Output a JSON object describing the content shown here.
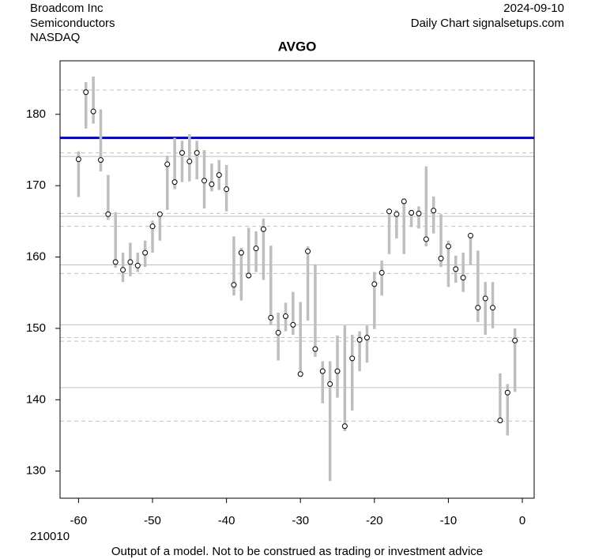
{
  "chart_data": {
    "type": "highlow",
    "title": "AVGO",
    "company": "Broadcom Inc",
    "sector": "Semiconductors",
    "exchange": "NASDAQ",
    "date": "2024-09-10",
    "source": "Daily Chart signalsetups.com",
    "code": "210010",
    "disclaimer": "Output of a model. Not to be construed as trading or investment advice",
    "xlim": [
      -62.5,
      1.6
    ],
    "ylim": [
      126.2,
      187.5
    ],
    "xticks": [
      -60,
      -50,
      -40,
      -30,
      -20,
      -10,
      0
    ],
    "yticks": [
      130,
      140,
      150,
      160,
      170,
      180
    ],
    "bar_color": "#bebebe",
    "level_main": 176.7,
    "level_main_color": "#0000cd",
    "levels_solid": [
      174.1,
      165.7,
      158.9,
      150.5,
      141.7
    ],
    "levels_dashed": [
      183.4,
      174.6,
      166.1,
      164.3,
      157.7,
      148.7,
      148.2,
      137.0
    ],
    "x": [
      -60,
      -59,
      -58,
      -57,
      -56,
      -55,
      -54,
      -53,
      -52,
      -51,
      -50,
      -49,
      -48,
      -47,
      -46,
      -45,
      -44,
      -43,
      -42,
      -41,
      -40,
      -39,
      -38,
      -37,
      -36,
      -35,
      -34,
      -33,
      -32,
      -31,
      -30,
      -29,
      -28,
      -27,
      -26,
      -25,
      -24,
      -23,
      -22,
      -21,
      -20,
      -19,
      -18,
      -17,
      -16,
      -15,
      -14,
      -13,
      -12,
      -11,
      -10,
      -9,
      -8,
      -7,
      -6,
      -5,
      -4,
      -3,
      -2,
      -1
    ],
    "high": [
      174.8,
      184.5,
      185.3,
      180.7,
      171.5,
      166.3,
      160.6,
      162.0,
      160.6,
      162.3,
      165.1,
      166.3,
      174.2,
      176.7,
      176.3,
      177.2,
      176.3,
      175.0,
      173.1,
      173.6,
      172.9,
      162.9,
      161.3,
      164.1,
      163.6,
      165.4,
      161.6,
      152.2,
      153.6,
      155.1,
      153.7,
      161.5,
      159.0,
      145.4,
      145.4,
      149.0,
      150.4,
      149.1,
      149.6,
      150.4,
      157.9,
      159.5,
      166.8,
      166.6,
      168.2,
      166.6,
      167.1,
      172.7,
      168.5,
      166.0,
      162.3,
      160.2,
      160.6,
      163.3,
      160.9,
      156.5,
      156.5,
      143.7,
      142.2,
      150.0
    ],
    "low": [
      168.4,
      178.0,
      178.7,
      172.0,
      165.2,
      158.5,
      156.5,
      157.3,
      157.9,
      158.6,
      160.6,
      162.3,
      166.6,
      169.5,
      170.5,
      170.6,
      170.9,
      166.8,
      169.2,
      169.4,
      166.4,
      154.6,
      153.9,
      157.0,
      157.9,
      156.8,
      150.5,
      145.5,
      149.6,
      149.1,
      143.8,
      151.1,
      146.0,
      139.5,
      128.6,
      140.3,
      135.6,
      138.5,
      144.0,
      145.2,
      149.9,
      154.6,
      160.4,
      162.6,
      160.4,
      164.2,
      164.0,
      161.5,
      163.3,
      158.6,
      155.8,
      156.4,
      155.1,
      158.9,
      150.9,
      149.1,
      150.0,
      136.7,
      135.0,
      141.1
    ],
    "close": [
      173.7,
      183.1,
      180.4,
      173.6,
      166.0,
      159.3,
      158.2,
      159.3,
      158.8,
      160.6,
      164.3,
      166.0,
      173.0,
      170.5,
      174.6,
      173.4,
      174.6,
      170.7,
      170.2,
      171.5,
      169.5,
      156.1,
      160.6,
      157.4,
      161.2,
      163.9,
      151.5,
      149.4,
      151.7,
      150.5,
      143.6,
      160.8,
      147.1,
      144.0,
      142.2,
      144.0,
      136.3,
      145.8,
      148.4,
      148.7,
      156.2,
      157.8,
      166.4,
      166.0,
      167.8,
      166.2,
      166.1,
      162.5,
      166.5,
      159.8,
      161.5,
      158.3,
      157.1,
      163.0,
      152.9,
      154.2,
      152.9,
      137.1,
      141.0,
      148.3
    ]
  }
}
